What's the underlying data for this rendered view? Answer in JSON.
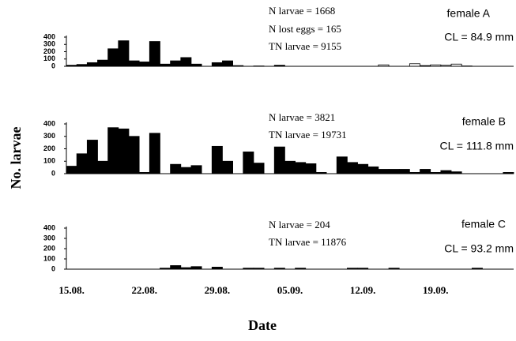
{
  "chart_data": [
    {
      "type": "bar",
      "ylim": [
        0,
        400
      ],
      "yticks": [
        0,
        100,
        200,
        300,
        400
      ],
      "annotations": [
        "N larvae = 1668",
        "N lost eggs = 165",
        "TN larvae = 9155",
        "female A",
        "CL = 84.9 mm"
      ],
      "series": [
        {
          "color": "#000000",
          "values": [
            15,
            25,
            50,
            85,
            240,
            350,
            75,
            60,
            340,
            30,
            75,
            120,
            30,
            0,
            50,
            75,
            10,
            0,
            5,
            0,
            15,
            0,
            0,
            0,
            0,
            0,
            0,
            0,
            0,
            0,
            0,
            0,
            0,
            0,
            0,
            0,
            0,
            0,
            0,
            0,
            0,
            0,
            0
          ]
        },
        {
          "color": "#ffffff",
          "values": [
            0,
            0,
            0,
            0,
            0,
            0,
            0,
            0,
            0,
            0,
            0,
            0,
            0,
            0,
            0,
            0,
            0,
            0,
            0,
            0,
            0,
            0,
            0,
            0,
            0,
            0,
            0,
            0,
            0,
            0,
            20,
            0,
            0,
            35,
            10,
            20,
            15,
            30,
            5,
            0,
            0,
            0,
            0
          ]
        }
      ]
    },
    {
      "type": "bar",
      "ylim": [
        0,
        400
      ],
      "yticks": [
        0,
        100,
        200,
        300,
        400
      ],
      "y_label": "No. larvae",
      "annotations": [
        "N larvae = 3821",
        "TN larvae = 19731",
        "female B",
        "CL = 111.8 mm"
      ],
      "series": [
        {
          "color": "#000000",
          "values": [
            60,
            160,
            270,
            100,
            370,
            360,
            300,
            10,
            325,
            0,
            75,
            50,
            65,
            0,
            220,
            100,
            0,
            175,
            85,
            0,
            215,
            100,
            90,
            80,
            10,
            0,
            135,
            90,
            75,
            55,
            35,
            35,
            35,
            10,
            35,
            10,
            25,
            15,
            0,
            0,
            0,
            0,
            10
          ]
        }
      ]
    },
    {
      "type": "bar",
      "ylim": [
        0,
        400
      ],
      "yticks": [
        0,
        100,
        200,
        300,
        400
      ],
      "x_label": "Date",
      "annotations": [
        "N larvae = 204",
        "TN larvae = 11876",
        "female C",
        "CL = 93.2 mm"
      ],
      "categories": [
        "15.08.",
        null,
        null,
        null,
        null,
        null,
        null,
        "22.08.",
        null,
        null,
        null,
        null,
        null,
        null,
        "29.08.",
        null,
        null,
        null,
        null,
        null,
        null,
        "05.09.",
        null,
        null,
        null,
        null,
        null,
        null,
        "12.09.",
        null,
        null,
        null,
        null,
        null,
        null,
        "19.09.",
        null,
        null,
        null,
        null,
        null,
        null,
        null
      ],
      "series": [
        {
          "color": "#000000",
          "values": [
            0,
            0,
            0,
            0,
            0,
            0,
            0,
            0,
            0,
            10,
            35,
            15,
            25,
            0,
            20,
            0,
            0,
            10,
            10,
            0,
            10,
            0,
            10,
            0,
            0,
            0,
            0,
            10,
            10,
            0,
            0,
            10,
            0,
            0,
            0,
            0,
            0,
            0,
            0,
            10,
            0,
            0,
            0
          ]
        }
      ]
    }
  ]
}
